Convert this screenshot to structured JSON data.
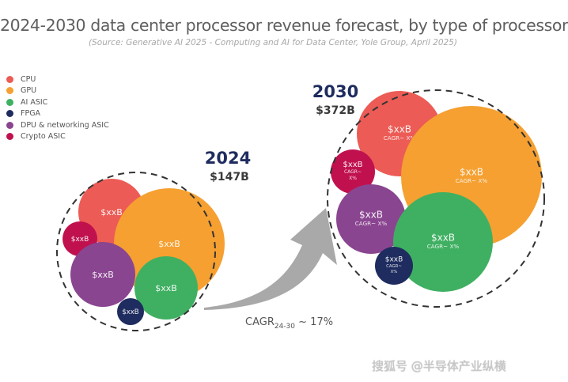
{
  "chart_data": {
    "type": "bubble-pack",
    "title": "2024-2030 data center processor revenue forecast, by type of processor",
    "subtitle": "(Source: Generative AI 2025 - Computing and AI for Data Center, Yole Group, April 2025)",
    "legend": [
      {
        "name": "CPU",
        "color": "#ec5b55"
      },
      {
        "name": "GPU",
        "color": "#f5a031"
      },
      {
        "name": "AI ASIC",
        "color": "#3fb062"
      },
      {
        "name": "FPGA",
        "color": "#1f2c5f"
      },
      {
        "name": "DPU & networking ASIC",
        "color": "#8a4590"
      },
      {
        "name": "Crypto ASIC",
        "color": "#c0114e"
      }
    ],
    "legend_position": "top-left",
    "groups": [
      {
        "year": "2024",
        "total": "$147B",
        "bubbles": [
          {
            "category": "CPU",
            "value_label": "$xxB",
            "cagr_label": ""
          },
          {
            "category": "GPU",
            "value_label": "$xxB",
            "cagr_label": ""
          },
          {
            "category": "Crypto ASIC",
            "value_label": "$xxB",
            "cagr_label": ""
          },
          {
            "category": "DPU & networking ASIC",
            "value_label": "$xxB",
            "cagr_label": ""
          },
          {
            "category": "AI ASIC",
            "value_label": "$xxB",
            "cagr_label": ""
          },
          {
            "category": "FPGA",
            "value_label": "$xxB",
            "cagr_label": ""
          }
        ]
      },
      {
        "year": "2030",
        "total": "$372B",
        "bubbles": [
          {
            "category": "CPU",
            "value_label": "$xxB",
            "cagr_label": "CAGR~ X%"
          },
          {
            "category": "GPU",
            "value_label": "$xxB",
            "cagr_label": "CAGR~ X%"
          },
          {
            "category": "Crypto ASIC",
            "value_label": "$xxB",
            "cagr_label": "CAGR~|X%"
          },
          {
            "category": "DPU & networking ASIC",
            "value_label": "$xxB",
            "cagr_label": "CAGR~ X%"
          },
          {
            "category": "AI ASIC",
            "value_label": "$xxB",
            "cagr_label": "CAGR~ X%"
          },
          {
            "category": "FPGA",
            "value_label": "$xxB",
            "cagr_label": "CAGR~|X%"
          }
        ]
      }
    ],
    "growth_annotation": {
      "prefix": "CAGR",
      "subscript": "24-30",
      "suffix": " ~ 17%"
    },
    "arrow_color": "#a9a9a9",
    "total_color": "#1f2c5f"
  },
  "watermark": "搜狐号 @半导体产业纵横"
}
